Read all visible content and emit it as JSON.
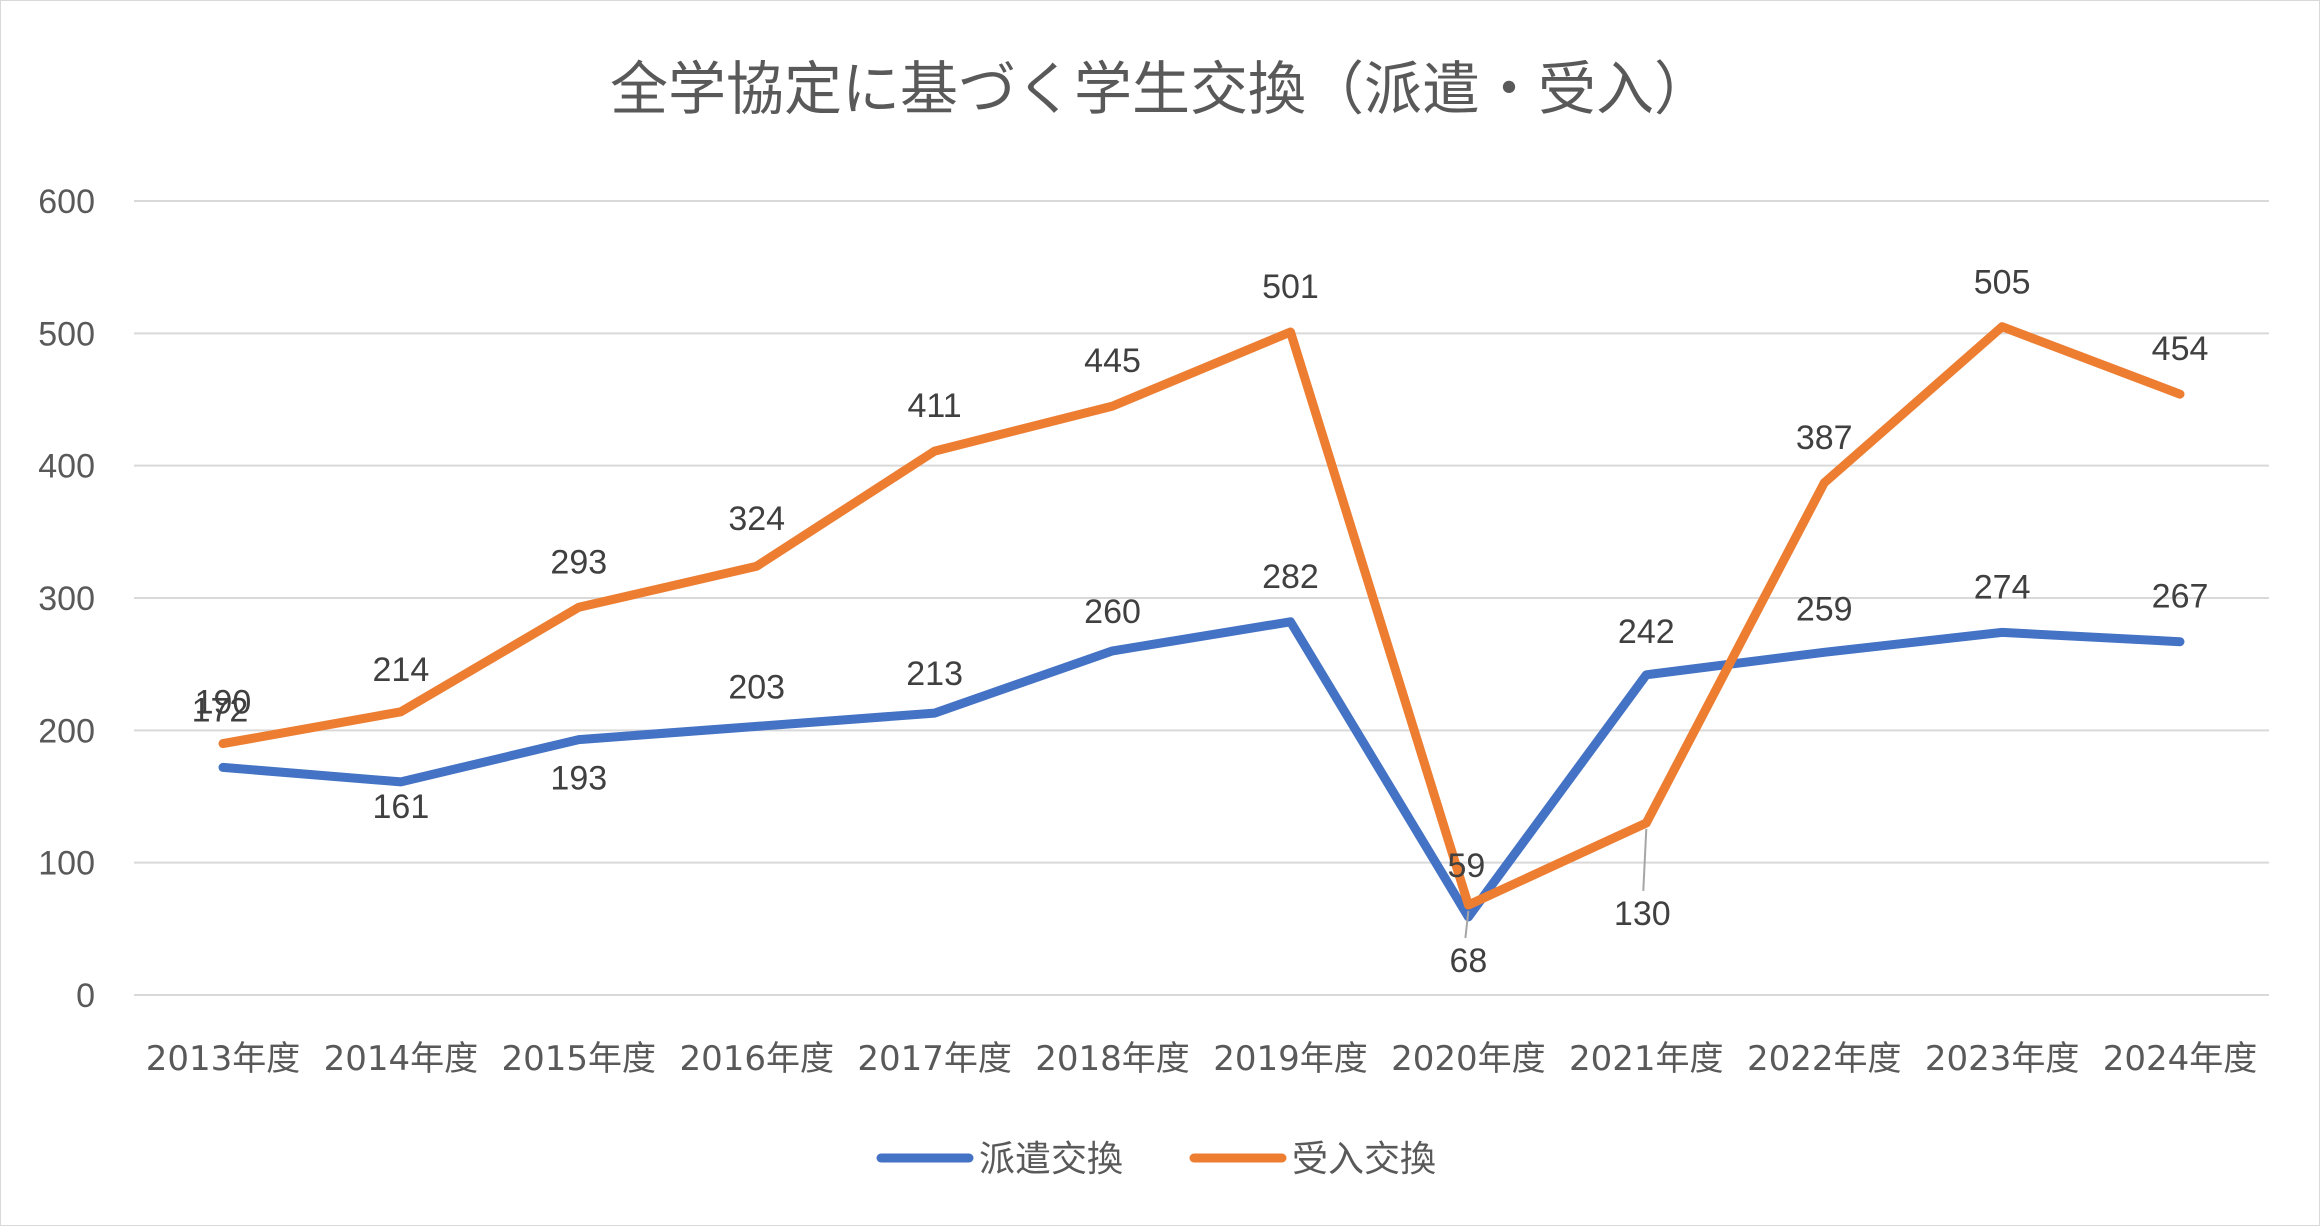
{
  "chart_data": {
    "type": "line",
    "title": "全学協定に基づく学生交換（派遣・受入）",
    "xlabel": "",
    "ylabel": "",
    "ylim": [
      0,
      600
    ],
    "yticks": [
      0,
      100,
      200,
      300,
      400,
      500,
      600
    ],
    "grid": true,
    "legend_position": "bottom",
    "categories": [
      "2013年度",
      "2014年度",
      "2015年度",
      "2016年度",
      "2017年度",
      "2018年度",
      "2019年度",
      "2020年度",
      "2021年度",
      "2022年度",
      "2023年度",
      "2024年度"
    ],
    "series": [
      {
        "name": "派遣交換",
        "color": "#4472c4",
        "values": [
          172,
          161,
          193,
          203,
          213,
          260,
          282,
          59,
          242,
          259,
          274,
          267
        ]
      },
      {
        "name": "受入交換",
        "color": "#ed7d31",
        "values": [
          190,
          214,
          293,
          324,
          411,
          445,
          501,
          68,
          130,
          387,
          505,
          454
        ]
      }
    ]
  }
}
